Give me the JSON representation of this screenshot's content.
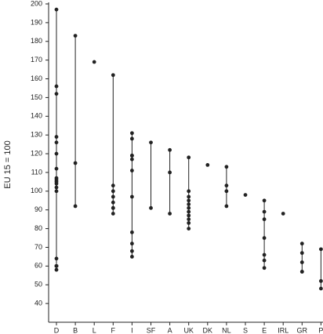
{
  "chart_data": {
    "type": "dot-range",
    "y_label": "EU 15 = 100",
    "categories": [
      "D",
      "B",
      "L",
      "F",
      "I",
      "SF",
      "A",
      "UK",
      "DK",
      "NL",
      "S",
      "E",
      "IRL",
      "GR",
      "P"
    ],
    "values": [
      [
        197,
        156,
        152,
        129,
        126,
        120,
        112,
        107,
        106,
        105,
        104,
        102,
        100,
        64,
        60,
        60,
        60,
        58
      ],
      [
        183,
        115,
        92
      ],
      [
        169
      ],
      [
        162,
        103,
        100,
        97,
        94,
        91,
        91,
        88
      ],
      [
        131,
        128,
        119,
        119,
        117,
        111,
        97,
        78,
        72,
        68,
        65
      ],
      [
        126,
        91
      ],
      [
        122,
        110,
        88
      ],
      [
        118,
        100,
        97,
        95,
        93,
        91,
        89,
        87,
        85,
        83,
        80
      ],
      [
        114
      ],
      [
        113,
        103,
        100,
        92
      ],
      [
        98
      ],
      [
        95,
        89,
        85,
        75,
        66,
        63,
        59
      ],
      [
        88
      ],
      [
        72,
        67,
        62,
        57,
        57
      ],
      [
        69,
        52,
        48
      ]
    ],
    "color": "#222222",
    "ylim": [
      30,
      200
    ],
    "yticks": [
      40,
      50,
      60,
      70,
      80,
      90,
      100,
      110,
      120,
      130,
      140,
      150,
      160,
      170,
      180,
      190,
      200
    ]
  }
}
